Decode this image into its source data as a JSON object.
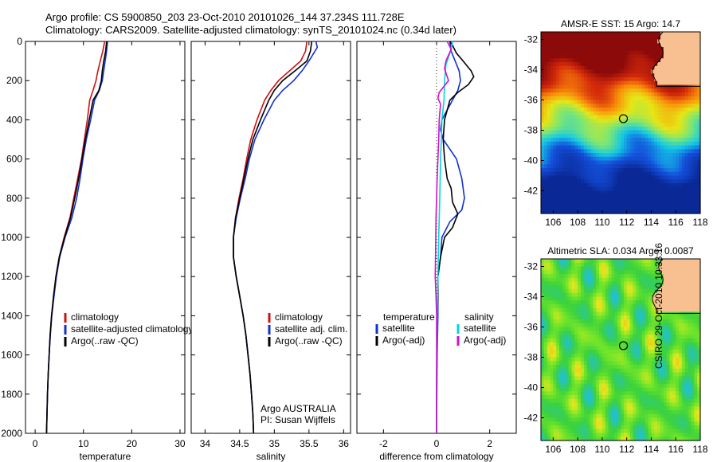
{
  "header": {
    "line1": "Argo profile: CS 5900850_203 23-Oct-2010 20101026_144 37.234S 111.728E",
    "line2": "Climatology: CARS2009. Satellite-adjusted climatology: synTS_20101024.nc (0.34d later)"
  },
  "credit": {
    "org": "Argo AUSTRALIA",
    "pi": "PI: Susan Wijffels",
    "stamp": "CSIRO 29-Oct-2010 10:33:16"
  },
  "colors": {
    "climatology": "#d01010",
    "satellite": "#1030d0",
    "argo": "#000000",
    "salinity_satellite": "#00d8d8",
    "salinity_argo": "#d010d0",
    "land": "#f8c090"
  },
  "chart_data": [
    {
      "type": "line",
      "id": "temperature-profile",
      "xlabel": "temperature",
      "xlim": [
        -2,
        31
      ],
      "ylim": [
        2000,
        0
      ],
      "yticks": [
        0,
        200,
        400,
        600,
        800,
        1000,
        1200,
        1400,
        1600,
        1800,
        2000
      ],
      "xticks": [
        0,
        10,
        20,
        30
      ],
      "legend": [
        "climatology",
        "satellite-adjusted climatology",
        "Argo(..raw -QC)"
      ],
      "series": [
        {
          "name": "climatology",
          "color": "#d01010",
          "points": [
            [
              14.4,
              0
            ],
            [
              14.0,
              50
            ],
            [
              13.5,
              100
            ],
            [
              13.0,
              150
            ],
            [
              12.6,
              200
            ],
            [
              12.0,
              250
            ],
            [
              11.3,
              300
            ],
            [
              10.8,
              400
            ],
            [
              10.2,
              500
            ],
            [
              9.6,
              600
            ],
            [
              8.8,
              700
            ],
            [
              8.0,
              800
            ],
            [
              7.2,
              900
            ],
            [
              6.0,
              1000
            ],
            [
              5.0,
              1100
            ],
            [
              4.3,
              1200
            ],
            [
              3.8,
              1300
            ],
            [
              3.4,
              1400
            ],
            [
              3.1,
              1500
            ],
            [
              2.9,
              1600
            ],
            [
              2.7,
              1700
            ],
            [
              2.55,
              1800
            ],
            [
              2.45,
              1900
            ],
            [
              2.35,
              2000
            ]
          ]
        },
        {
          "name": "satellite-adjusted climatology",
          "color": "#1030d0",
          "points": [
            [
              15.0,
              0
            ],
            [
              14.8,
              50
            ],
            [
              14.5,
              100
            ],
            [
              14.2,
              150
            ],
            [
              13.9,
              200
            ],
            [
              13.3,
              250
            ],
            [
              12.3,
              300
            ],
            [
              11.5,
              400
            ],
            [
              10.6,
              500
            ],
            [
              9.9,
              600
            ],
            [
              9.3,
              700
            ],
            [
              8.6,
              800
            ],
            [
              7.6,
              900
            ],
            [
              6.2,
              1000
            ],
            [
              5.1,
              1100
            ],
            [
              4.4,
              1200
            ],
            [
              3.9,
              1300
            ],
            [
              3.45,
              1400
            ],
            [
              3.15,
              1500
            ],
            [
              2.9,
              1600
            ],
            [
              2.7,
              1700
            ],
            [
              2.55,
              1800
            ],
            [
              2.45,
              1900
            ],
            [
              2.35,
              2000
            ]
          ]
        },
        {
          "name": "Argo(..raw -QC)",
          "color": "#000000",
          "points": [
            [
              14.8,
              0
            ],
            [
              14.6,
              50
            ],
            [
              14.2,
              100
            ],
            [
              13.9,
              150
            ],
            [
              13.7,
              200
            ],
            [
              13.2,
              250
            ],
            [
              12.0,
              300
            ],
            [
              11.2,
              400
            ],
            [
              10.4,
              500
            ],
            [
              9.7,
              600
            ],
            [
              9.0,
              700
            ],
            [
              8.2,
              800
            ],
            [
              7.3,
              900
            ],
            [
              6.1,
              1000
            ],
            [
              5.0,
              1100
            ],
            [
              4.3,
              1200
            ],
            [
              3.8,
              1300
            ],
            [
              3.4,
              1400
            ],
            [
              3.1,
              1500
            ],
            [
              2.9,
              1600
            ],
            [
              2.7,
              1700
            ],
            [
              2.55,
              1800
            ],
            [
              2.45,
              1900
            ],
            [
              2.35,
              2000
            ]
          ]
        }
      ]
    },
    {
      "type": "line",
      "id": "salinity-profile",
      "xlabel": "salinity",
      "xlim": [
        33.8,
        36.1
      ],
      "ylim": [
        2000,
        0
      ],
      "xticks": [
        34,
        34.5,
        35,
        35.5,
        36
      ],
      "legend": [
        "climatology",
        "satellite adj. clim.",
        "Argo(..raw -QC)"
      ],
      "series": [
        {
          "name": "climatology",
          "color": "#d01010",
          "points": [
            [
              35.47,
              0
            ],
            [
              35.45,
              50
            ],
            [
              35.38,
              100
            ],
            [
              35.22,
              150
            ],
            [
              35.06,
              200
            ],
            [
              34.95,
              250
            ],
            [
              34.86,
              300
            ],
            [
              34.75,
              400
            ],
            [
              34.66,
              500
            ],
            [
              34.6,
              600
            ],
            [
              34.55,
              700
            ],
            [
              34.49,
              800
            ],
            [
              34.44,
              900
            ],
            [
              34.41,
              1000
            ],
            [
              34.41,
              1100
            ],
            [
              34.45,
              1200
            ],
            [
              34.5,
              1300
            ],
            [
              34.55,
              1400
            ],
            [
              34.59,
              1500
            ],
            [
              34.62,
              1600
            ],
            [
              34.65,
              1700
            ],
            [
              34.67,
              1800
            ],
            [
              34.69,
              1900
            ],
            [
              34.7,
              2000
            ]
          ]
        },
        {
          "name": "satellite adj. clim.",
          "color": "#1030d0",
          "points": [
            [
              35.6,
              0
            ],
            [
              35.62,
              30
            ],
            [
              35.5,
              100
            ],
            [
              35.4,
              150
            ],
            [
              35.28,
              200
            ],
            [
              35.12,
              250
            ],
            [
              35.0,
              300
            ],
            [
              34.85,
              400
            ],
            [
              34.72,
              500
            ],
            [
              34.64,
              600
            ],
            [
              34.58,
              700
            ],
            [
              34.51,
              800
            ],
            [
              34.45,
              900
            ],
            [
              34.41,
              1000
            ],
            [
              34.41,
              1100
            ],
            [
              34.45,
              1200
            ],
            [
              34.5,
              1300
            ],
            [
              34.55,
              1400
            ],
            [
              34.59,
              1500
            ],
            [
              34.62,
              1600
            ],
            [
              34.65,
              1700
            ],
            [
              34.67,
              1800
            ],
            [
              34.69,
              1900
            ],
            [
              34.7,
              2000
            ]
          ]
        },
        {
          "name": "Argo(..raw -QC)",
          "color": "#000000",
          "points": [
            [
              35.54,
              0
            ],
            [
              35.52,
              50
            ],
            [
              35.47,
              100
            ],
            [
              35.3,
              150
            ],
            [
              35.12,
              200
            ],
            [
              35.0,
              250
            ],
            [
              34.92,
              300
            ],
            [
              34.8,
              400
            ],
            [
              34.69,
              500
            ],
            [
              34.62,
              600
            ],
            [
              34.56,
              700
            ],
            [
              34.5,
              800
            ],
            [
              34.44,
              900
            ],
            [
              34.41,
              1000
            ],
            [
              34.41,
              1100
            ],
            [
              34.45,
              1200
            ],
            [
              34.5,
              1300
            ],
            [
              34.55,
              1400
            ],
            [
              34.59,
              1500
            ],
            [
              34.62,
              1600
            ],
            [
              34.65,
              1700
            ],
            [
              34.67,
              1800
            ],
            [
              34.69,
              1900
            ],
            [
              34.7,
              2000
            ]
          ]
        }
      ]
    },
    {
      "type": "line",
      "id": "difference-profile",
      "xlabel": "difference from climatology",
      "xlim": [
        -3,
        3
      ],
      "ylim": [
        2000,
        0
      ],
      "xticks": [
        -2,
        0,
        2
      ],
      "legend_temperature_title": "temperature",
      "legend_salinity_title": "salinity",
      "legend_temperature": [
        "satellite",
        "Argo(-adj)"
      ],
      "legend_salinity": [
        "satellite",
        "Argo(-adj)"
      ],
      "series": [
        {
          "name": "temperature satellite",
          "color": "#1030d0",
          "points": [
            [
              0.5,
              0
            ],
            [
              0.55,
              50
            ],
            [
              0.7,
              100
            ],
            [
              0.85,
              150
            ],
            [
              0.9,
              200
            ],
            [
              0.8,
              250
            ],
            [
              0.6,
              300
            ],
            [
              0.4,
              350
            ],
            [
              0.2,
              400
            ],
            [
              0.15,
              450
            ],
            [
              0.25,
              500
            ],
            [
              0.5,
              550
            ],
            [
              0.75,
              600
            ],
            [
              0.95,
              700
            ],
            [
              1.05,
              800
            ],
            [
              0.95,
              860
            ],
            [
              0.5,
              920
            ],
            [
              0.2,
              1000
            ],
            [
              0.15,
              1100
            ],
            [
              0.05,
              1200
            ],
            [
              0.05,
              1400
            ],
            [
              0.02,
              1600
            ],
            [
              0.01,
              1800
            ],
            [
              0.0,
              2000
            ]
          ]
        },
        {
          "name": "temperature Argo(-adj)",
          "color": "#000000",
          "points": [
            [
              0.5,
              0
            ],
            [
              0.6,
              20
            ],
            [
              0.75,
              60
            ],
            [
              1.0,
              100
            ],
            [
              1.3,
              150
            ],
            [
              1.4,
              180
            ],
            [
              1.2,
              220
            ],
            [
              0.8,
              260
            ],
            [
              0.5,
              300
            ],
            [
              0.3,
              400
            ],
            [
              0.25,
              500
            ],
            [
              0.3,
              600
            ],
            [
              0.4,
              700
            ],
            [
              0.55,
              750
            ],
            [
              0.6,
              820
            ],
            [
              0.8,
              880
            ],
            [
              0.6,
              950
            ],
            [
              0.3,
              1000
            ],
            [
              0.15,
              1100
            ],
            [
              0.05,
              1200
            ],
            [
              0.05,
              1300
            ],
            [
              0.02,
              1400
            ],
            [
              0.01,
              1600
            ],
            [
              0.0,
              1800
            ],
            [
              0.0,
              2000
            ]
          ]
        },
        {
          "name": "salinity satellite",
          "color": "#00d8d8",
          "points": [
            [
              0.6,
              0
            ],
            [
              0.55,
              40
            ],
            [
              0.45,
              80
            ],
            [
              0.35,
              120
            ],
            [
              0.3,
              200
            ],
            [
              0.28,
              300
            ],
            [
              0.2,
              400
            ],
            [
              0.18,
              500
            ],
            [
              0.15,
              600
            ],
            [
              0.12,
              800
            ],
            [
              0.08,
              1000
            ],
            [
              0.05,
              1200
            ],
            [
              0.02,
              1400
            ],
            [
              0.01,
              1600
            ],
            [
              0.0,
              1800
            ],
            [
              0.0,
              2000
            ]
          ]
        },
        {
          "name": "salinity Argo(-adj)",
          "color": "#d010d0",
          "points": [
            [
              0.4,
              0
            ],
            [
              0.55,
              40
            ],
            [
              0.35,
              100
            ],
            [
              0.3,
              140
            ],
            [
              0.45,
              200
            ],
            [
              0.1,
              260
            ],
            [
              0.05,
              290
            ],
            [
              0.15,
              320
            ],
            [
              0.1,
              400
            ],
            [
              0.08,
              500
            ],
            [
              0.05,
              600
            ],
            [
              0.02,
              700
            ],
            [
              0.0,
              800
            ],
            [
              -0.02,
              900
            ],
            [
              -0.03,
              1000
            ],
            [
              -0.04,
              1100
            ],
            [
              -0.05,
              1200
            ],
            [
              -0.02,
              1300
            ],
            [
              0.0,
              1400
            ],
            [
              0.0,
              1600
            ],
            [
              0.0,
              1800
            ],
            [
              0.0,
              2000
            ]
          ]
        }
      ]
    },
    {
      "type": "heatmap",
      "id": "sst-map",
      "title": "AMSR-E SST: 15 Argo: 14.7",
      "xlim": [
        105,
        118
      ],
      "ylim": [
        -43.5,
        -31.5
      ],
      "xticks": [
        106,
        108,
        110,
        112,
        114,
        116,
        118
      ],
      "yticks": [
        -32,
        -34,
        -36,
        -38,
        -40,
        -42
      ],
      "profile_location": [
        111.728,
        -37.234
      ]
    },
    {
      "type": "heatmap",
      "id": "sla-map",
      "title": "Altimetric SLA: 0.034 Argo: 0.0087",
      "xlim": [
        105,
        118
      ],
      "ylim": [
        -43.5,
        -31.5
      ],
      "xticks": [
        106,
        108,
        110,
        112,
        114,
        116,
        118
      ],
      "yticks": [
        -32,
        -34,
        -36,
        -38,
        -40,
        -42
      ],
      "profile_location": [
        111.728,
        -37.234
      ]
    }
  ]
}
